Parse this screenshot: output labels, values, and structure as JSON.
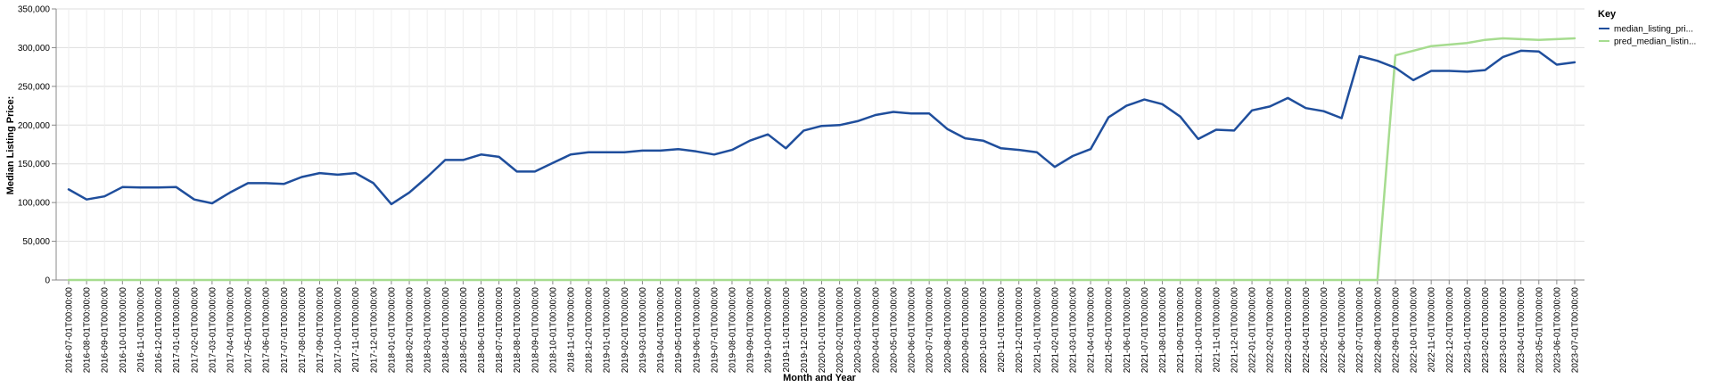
{
  "chart_data": {
    "type": "line",
    "xlabel": "Month and Year",
    "ylabel": "Median Listing Price:",
    "ylim": [
      0,
      350000
    ],
    "yticks": [
      0,
      50000,
      100000,
      150000,
      200000,
      250000,
      300000,
      350000
    ],
    "ytick_labels": [
      "0",
      "50,000",
      "100,000",
      "150,000",
      "200,000",
      "250,000",
      "300,000",
      "350,000"
    ],
    "grid": true,
    "legend": {
      "title": "Key",
      "position": "top-right"
    },
    "categories": [
      "2016-07-01T00:00:00",
      "2016-08-01T00:00:00",
      "2016-09-01T00:00:00",
      "2016-10-01T00:00:00",
      "2016-11-01T00:00:00",
      "2016-12-01T00:00:00",
      "2017-01-01T00:00:00",
      "2017-02-01T00:00:00",
      "2017-03-01T00:00:00",
      "2017-04-01T00:00:00",
      "2017-05-01T00:00:00",
      "2017-06-01T00:00:00",
      "2017-07-01T00:00:00",
      "2017-08-01T00:00:00",
      "2017-09-01T00:00:00",
      "2017-10-01T00:00:00",
      "2017-11-01T00:00:00",
      "2017-12-01T00:00:00",
      "2018-01-01T00:00:00",
      "2018-02-01T00:00:00",
      "2018-03-01T00:00:00",
      "2018-04-01T00:00:00",
      "2018-05-01T00:00:00",
      "2018-06-01T00:00:00",
      "2018-07-01T00:00:00",
      "2018-08-01T00:00:00",
      "2018-09-01T00:00:00",
      "2018-10-01T00:00:00",
      "2018-11-01T00:00:00",
      "2018-12-01T00:00:00",
      "2019-01-01T00:00:00",
      "2019-02-01T00:00:00",
      "2019-03-01T00:00:00",
      "2019-04-01T00:00:00",
      "2019-05-01T00:00:00",
      "2019-06-01T00:00:00",
      "2019-07-01T00:00:00",
      "2019-08-01T00:00:00",
      "2019-09-01T00:00:00",
      "2019-10-01T00:00:00",
      "2019-11-01T00:00:00",
      "2019-12-01T00:00:00",
      "2020-01-01T00:00:00",
      "2020-02-01T00:00:00",
      "2020-03-01T00:00:00",
      "2020-04-01T00:00:00",
      "2020-05-01T00:00:00",
      "2020-06-01T00:00:00",
      "2020-07-01T00:00:00",
      "2020-08-01T00:00:00",
      "2020-09-01T00:00:00",
      "2020-10-01T00:00:00",
      "2020-11-01T00:00:00",
      "2020-12-01T00:00:00",
      "2021-01-01T00:00:00",
      "2021-02-01T00:00:00",
      "2021-03-01T00:00:00",
      "2021-04-01T00:00:00",
      "2021-05-01T00:00:00",
      "2021-06-01T00:00:00",
      "2021-07-01T00:00:00",
      "2021-08-01T00:00:00",
      "2021-09-01T00:00:00",
      "2021-10-01T00:00:00",
      "2021-11-01T00:00:00",
      "2021-12-01T00:00:00",
      "2022-01-01T00:00:00",
      "2022-02-01T00:00:00",
      "2022-03-01T00:00:00",
      "2022-04-01T00:00:00",
      "2022-05-01T00:00:00",
      "2022-06-01T00:00:00",
      "2022-07-01T00:00:00",
      "2022-08-01T00:00:00",
      "2022-09-01T00:00:00",
      "2022-10-01T00:00:00",
      "2022-11-01T00:00:00",
      "2022-12-01T00:00:00",
      "2023-01-01T00:00:00",
      "2023-02-01T00:00:00",
      "2023-03-01T00:00:00",
      "2023-04-01T00:00:00",
      "2023-05-01T00:00:00",
      "2023-06-01T00:00:00",
      "2023-07-01T00:00:00"
    ],
    "series": [
      {
        "name": "median_listing_pri...",
        "color": "#1f4e9c",
        "values": [
          117000,
          104000,
          108000,
          120000,
          119500,
          119500,
          120000,
          104000,
          99000,
          113000,
          125000,
          125000,
          124000,
          133000,
          138000,
          136000,
          138000,
          125000,
          98000,
          113000,
          133000,
          155000,
          155000,
          162000,
          159000,
          140000,
          140000,
          151000,
          162000,
          165000,
          165000,
          165000,
          167000,
          167000,
          169000,
          166000,
          162000,
          168000,
          180000,
          188000,
          170000,
          193000,
          199000,
          200000,
          205000,
          213000,
          217000,
          215000,
          215000,
          195000,
          183000,
          180000,
          170000,
          168000,
          165000,
          146000,
          160000,
          169000,
          210000,
          225000,
          233000,
          227000,
          211000,
          182000,
          194000,
          193000,
          219000,
          224000,
          235000,
          222000,
          218000,
          209000,
          289000,
          283000,
          274000,
          258000,
          270000,
          270000,
          269000,
          271000,
          288000,
          296000,
          295000,
          278000,
          281000
        ]
      },
      {
        "name": "pred_median_listin...",
        "color": "#a6dc8f",
        "values": [
          0,
          0,
          0,
          0,
          0,
          0,
          0,
          0,
          0,
          0,
          0,
          0,
          0,
          0,
          0,
          0,
          0,
          0,
          0,
          0,
          0,
          0,
          0,
          0,
          0,
          0,
          0,
          0,
          0,
          0,
          0,
          0,
          0,
          0,
          0,
          0,
          0,
          0,
          0,
          0,
          0,
          0,
          0,
          0,
          0,
          0,
          0,
          0,
          0,
          0,
          0,
          0,
          0,
          0,
          0,
          0,
          0,
          0,
          0,
          0,
          0,
          0,
          0,
          0,
          0,
          0,
          0,
          0,
          0,
          0,
          0,
          0,
          0,
          0,
          290000,
          296000,
          302000,
          304000,
          306000,
          310000,
          312000,
          311000,
          310000,
          311000,
          312000
        ]
      }
    ]
  }
}
